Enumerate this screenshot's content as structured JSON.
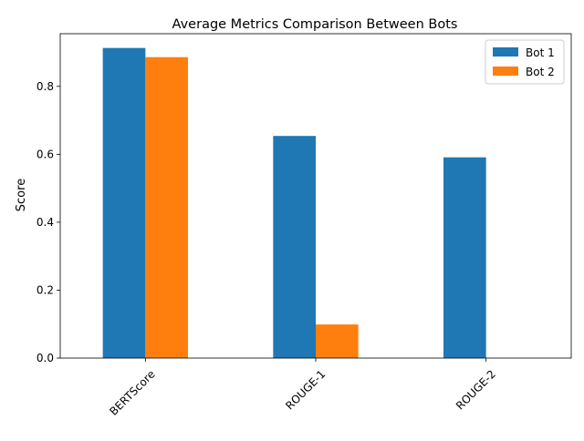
{
  "chart_data": {
    "type": "bar",
    "title": "Average Metrics Comparison Between Bots",
    "xlabel": "",
    "ylabel": "Score",
    "categories": [
      "BERTScore",
      "ROUGE-1",
      "ROUGE-2"
    ],
    "series": [
      {
        "name": "Bot 1",
        "color": "#1f77b4",
        "values": [
          0.913,
          0.654,
          0.591
        ]
      },
      {
        "name": "Bot 2",
        "color": "#ff7f0e",
        "values": [
          0.886,
          0.099,
          0.0
        ]
      }
    ],
    "ylim": [
      0,
      0.955
    ],
    "yticks": [
      0.0,
      0.2,
      0.4,
      0.6,
      0.8
    ],
    "ytick_labels": [
      "0.0",
      "0.2",
      "0.4",
      "0.6",
      "0.8"
    ],
    "xtick_rotation": 45,
    "grid": false,
    "legend_position": "top-right"
  }
}
